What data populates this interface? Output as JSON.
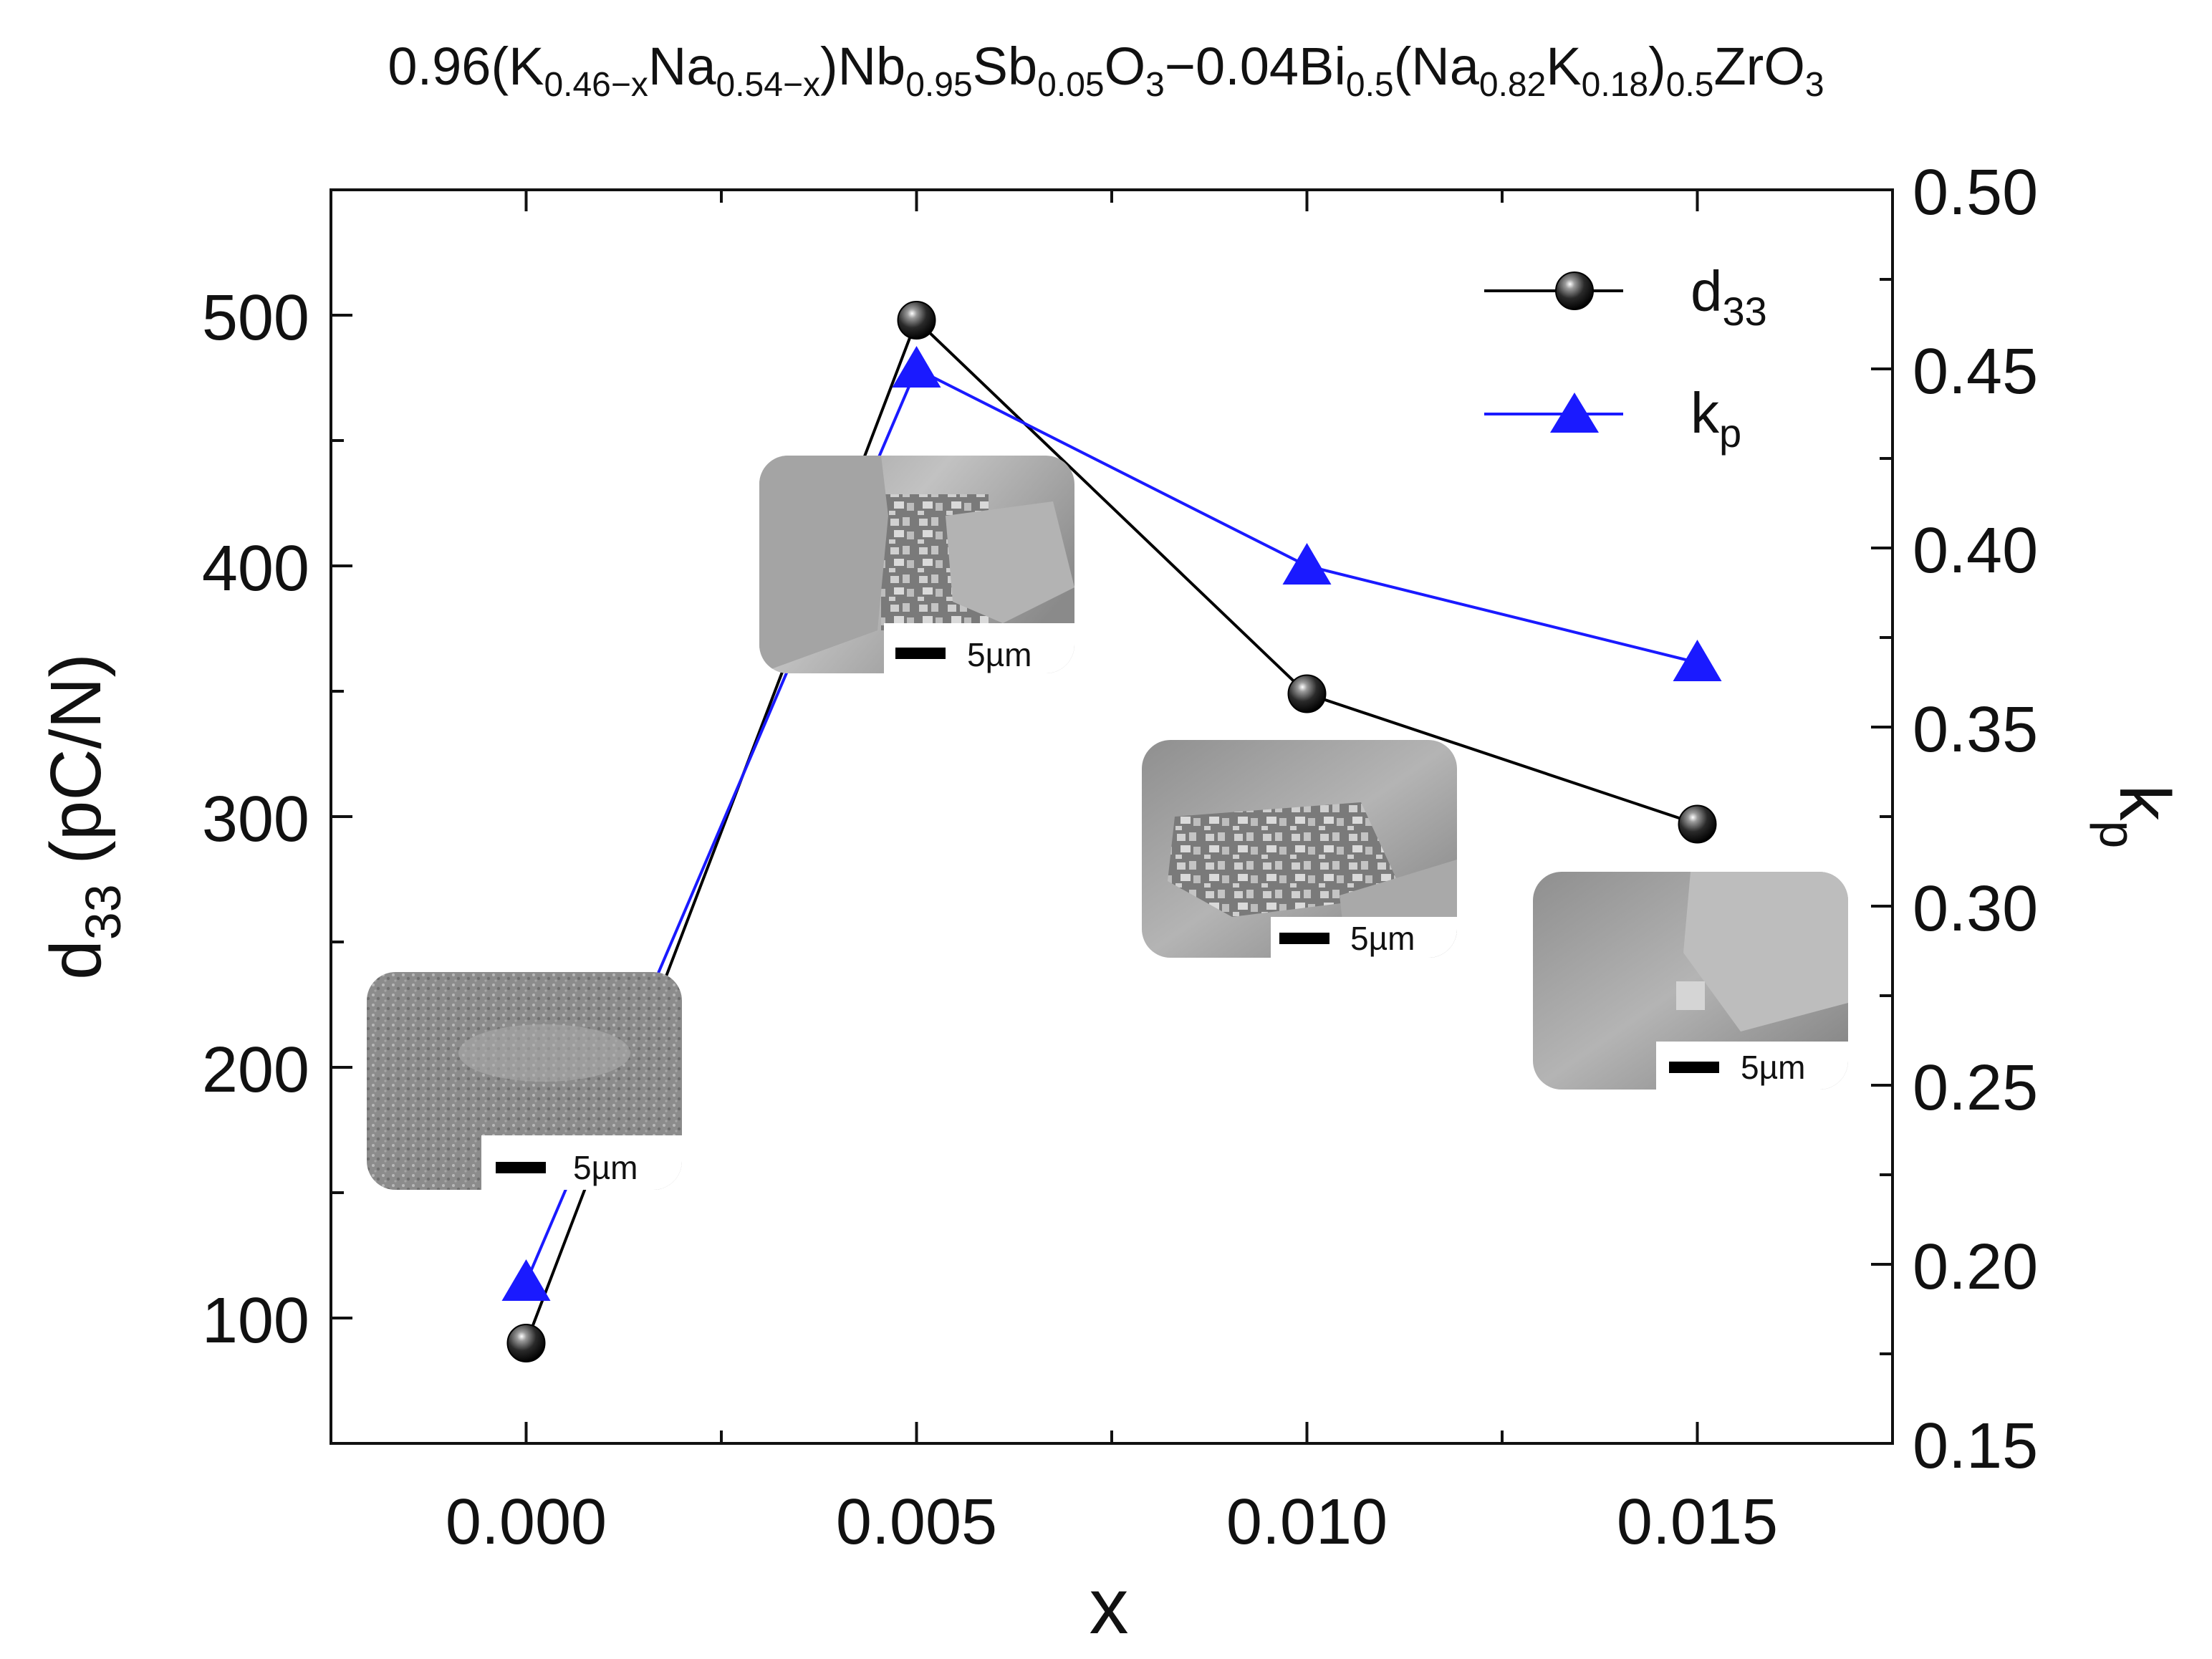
{
  "chart_data": {
    "type": "line",
    "title_parts": [
      {
        "t": "0.96(K",
        "s": "n"
      },
      {
        "t": "0.46−x",
        "s": "sub"
      },
      {
        "t": "Na",
        "s": "n"
      },
      {
        "t": "0.54−x",
        "s": "sub"
      },
      {
        "t": ")Nb",
        "s": "n"
      },
      {
        "t": "0.95",
        "s": "sub"
      },
      {
        "t": "Sb",
        "s": "n"
      },
      {
        "t": "0.05",
        "s": "sub"
      },
      {
        "t": "O",
        "s": "n"
      },
      {
        "t": "3",
        "s": "sub"
      },
      {
        "t": "−0.04Bi",
        "s": "n"
      },
      {
        "t": "0.5",
        "s": "sub"
      },
      {
        "t": "(Na",
        "s": "n"
      },
      {
        "t": "0.82",
        "s": "sub"
      },
      {
        "t": "K",
        "s": "n"
      },
      {
        "t": "0.18",
        "s": "sub"
      },
      {
        "t": ")",
        "s": "n"
      },
      {
        "t": "0.5",
        "s": "sub"
      },
      {
        "t": "ZrO",
        "s": "n"
      },
      {
        "t": "3",
        "s": "sub"
      }
    ],
    "xlabel": "x",
    "ylabel_left": {
      "main": "d",
      "sub": "33",
      "unit": " (pC/N)"
    },
    "ylabel_right": {
      "main": "k",
      "sub": "p"
    },
    "xlim": [
      -0.0025,
      0.0175
    ],
    "ylim_left": [
      50,
      550
    ],
    "ylim_right": [
      0.15,
      0.5
    ],
    "x_ticks": [
      0.0,
      0.005,
      0.01,
      0.015
    ],
    "x_tick_labels": [
      "0.000",
      "0.005",
      "0.010",
      "0.015"
    ],
    "x_minor_ticks": [
      0.0025,
      0.0075,
      0.0125
    ],
    "y_left_ticks": [
      100,
      200,
      300,
      400,
      500
    ],
    "y_left_tick_labels": [
      "100",
      "200",
      "300",
      "400",
      "500"
    ],
    "y_left_minor_ticks": [
      150,
      250,
      350,
      450
    ],
    "y_right_ticks": [
      0.15,
      0.2,
      0.25,
      0.3,
      0.35,
      0.4,
      0.45,
      0.5
    ],
    "y_right_tick_labels": [
      "0.15",
      "0.20",
      "0.25",
      "0.30",
      "0.35",
      "0.40",
      "0.45",
      "0.50"
    ],
    "series": [
      {
        "name": "d33",
        "legend_main": "d",
        "legend_sub": "33",
        "axis": "left",
        "marker": "sphere",
        "color": "#000000",
        "x": [
          0.0,
          0.005,
          0.01,
          0.015
        ],
        "values": [
          90,
          498,
          349,
          297
        ]
      },
      {
        "name": "kp",
        "legend_main": "k",
        "legend_sub": "p",
        "axis": "right",
        "marker": "triangle",
        "color": "#1a1aff",
        "x": [
          0.0,
          0.005,
          0.01,
          0.015
        ],
        "values": [
          0.195,
          0.45,
          0.395,
          0.368
        ]
      }
    ],
    "legend_position": "top-right",
    "insets": [
      {
        "name": "sem-inset-x0000",
        "scale_label": "5µm",
        "texture": "fine"
      },
      {
        "name": "sem-inset-x0005",
        "scale_label": "5µm",
        "texture": "large-grain"
      },
      {
        "name": "sem-inset-x0010",
        "scale_label": "5µm",
        "texture": "mixed"
      },
      {
        "name": "sem-inset-x0015",
        "scale_label": "5µm",
        "texture": "smooth"
      }
    ]
  }
}
